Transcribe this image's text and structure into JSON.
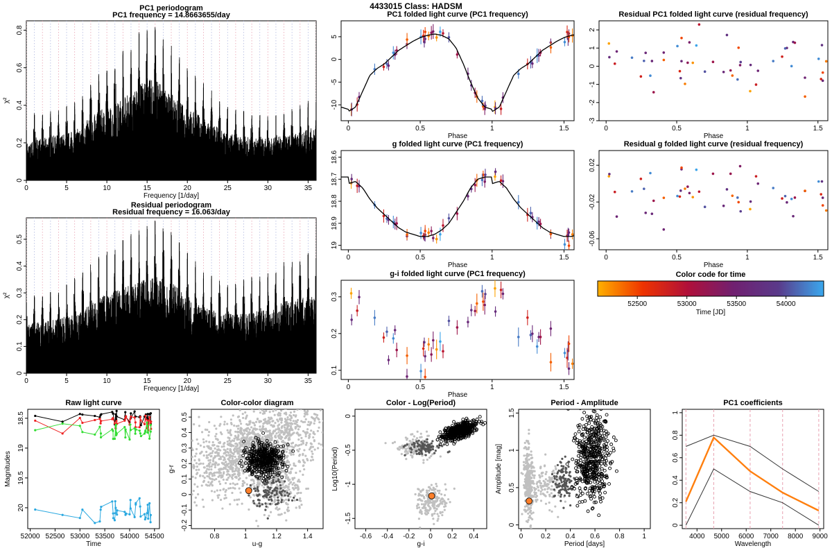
{
  "page": {
    "title": "4433015    Class: HADSM"
  },
  "colors": {
    "frame": "#000000",
    "grid_red": "#e8a0b0",
    "grid_blue": "#b0b8e0",
    "lightgray": "#c0c0c0",
    "darkgray": "#555555",
    "orange": "#ff7f2a",
    "green": "#33dd33",
    "red": "#ee2222",
    "cyan": "#2aa8e0",
    "pc1": "#ff7f0e"
  },
  "chart_data": [
    {
      "id": "pc1-periodogram",
      "type": "line",
      "title": "PC1 periodogram",
      "subtitle": "PC1 frequency = 14.8663655/day",
      "xlabel": "Frequency [1/day]",
      "ylabel": "χ²",
      "xlim": [
        0,
        36
      ],
      "ylim": [
        0,
        0.85
      ],
      "xticks": [
        0,
        5,
        10,
        15,
        20,
        25,
        30,
        35
      ],
      "yticks": [
        0.0,
        0.2,
        0.4,
        0.6,
        0.8
      ],
      "peaks_x": [
        0,
        1,
        2,
        3,
        4,
        5,
        6,
        7,
        8,
        9,
        10,
        11,
        12,
        13,
        14,
        15,
        16,
        17,
        18,
        19,
        20,
        21,
        22,
        23,
        24,
        25,
        26,
        27,
        28,
        29,
        30,
        31,
        32,
        33,
        34,
        35,
        36
      ],
      "peaks_y": [
        0.27,
        0.36,
        0.35,
        0.37,
        0.38,
        0.4,
        0.42,
        0.47,
        0.53,
        0.58,
        0.61,
        0.63,
        0.7,
        0.73,
        0.8,
        0.84,
        0.85,
        0.78,
        0.72,
        0.66,
        0.6,
        0.57,
        0.52,
        0.48,
        0.43,
        0.4,
        0.38,
        0.37,
        0.36,
        0.35,
        0.35,
        0.36,
        0.37,
        0.38,
        0.4,
        0.43,
        0.44
      ]
    },
    {
      "id": "residual-periodogram",
      "type": "line",
      "title": "Residual periodogram",
      "subtitle": "Residual frequency = 16.063/day",
      "xlabel": "Frequency [1/day]",
      "ylabel": "χ²",
      "xlim": [
        0,
        36
      ],
      "ylim": [
        0,
        0.58
      ],
      "xticks": [
        0,
        5,
        10,
        15,
        20,
        25,
        30,
        35
      ],
      "yticks": [
        0.0,
        0.1,
        0.2,
        0.3,
        0.4,
        0.5
      ],
      "peaks_x": [
        0,
        1,
        2,
        3,
        4,
        5,
        6,
        7,
        8,
        9,
        10,
        11,
        12,
        13,
        14,
        15,
        16,
        17,
        18,
        19,
        20,
        21,
        22,
        23,
        24,
        25,
        26,
        27,
        28,
        29,
        30,
        31,
        32,
        33,
        34,
        35,
        36
      ],
      "peaks_y": [
        0.28,
        0.3,
        0.3,
        0.31,
        0.32,
        0.34,
        0.36,
        0.38,
        0.41,
        0.44,
        0.46,
        0.48,
        0.5,
        0.52,
        0.54,
        0.56,
        0.57,
        0.55,
        0.53,
        0.49,
        0.45,
        0.42,
        0.39,
        0.37,
        0.36,
        0.35,
        0.34,
        0.35,
        0.36,
        0.37,
        0.38,
        0.4,
        0.42,
        0.43,
        0.44,
        0.45,
        0.45
      ]
    },
    {
      "id": "pc1-folded",
      "type": "scatter",
      "title": "PC1 folded light curve (PC1 frequency)",
      "xlabel": "Phase",
      "ylabel": "",
      "xlim": [
        -0.05,
        1.57
      ],
      "ylim": [
        -13.5,
        8.5
      ],
      "xticks": [
        0,
        0.5,
        1,
        1.5
      ],
      "yticks": [
        -10,
        -5,
        0,
        5
      ],
      "curve_x": [
        0,
        0.05,
        0.1,
        0.15,
        0.2,
        0.25,
        0.3,
        0.35,
        0.4,
        0.45,
        0.5,
        0.55,
        0.6,
        0.65,
        0.7,
        0.75,
        0.8,
        0.85,
        0.9,
        0.95,
        1.0,
        1.05,
        1.1,
        1.15,
        1.2,
        1.25,
        1.3,
        1.35,
        1.4,
        1.45,
        1.5,
        1.55
      ],
      "curve_y": [
        -11.5,
        -10.5,
        -7,
        -3.5,
        -2,
        -1,
        0.5,
        2,
        3,
        4,
        4.8,
        5.3,
        5.6,
        5.3,
        4.5,
        2.5,
        -1,
        -5,
        -8.5,
        -10.5,
        -11,
        -10.5,
        -7,
        -3.5,
        -2,
        -1,
        0.5,
        2,
        3,
        4,
        4.8,
        5.3
      ],
      "err": 3.0
    },
    {
      "id": "pc1-residual",
      "type": "scatter",
      "title": "Residual PC1 folded light curve (residual frequency)",
      "xlabel": "Phase",
      "ylabel": "",
      "xlim": [
        -0.05,
        1.57
      ],
      "ylim": [
        -3,
        2.5
      ],
      "xticks": [
        0,
        0.5,
        1,
        1.5
      ],
      "yticks": [
        -3,
        -2,
        -1,
        0,
        1,
        2
      ]
    },
    {
      "id": "g-folded",
      "type": "scatter",
      "title": "g folded light curve (PC1 frequency)",
      "xlabel": "Phase",
      "ylabel": "",
      "xlim": [
        -0.05,
        1.57
      ],
      "ylim": [
        19.02,
        18.57
      ],
      "xticks": [
        0,
        0.5,
        1,
        1.5
      ],
      "yticks": [
        18.6,
        18.7,
        18.8,
        18.9,
        19.0
      ],
      "curve_x": [
        0,
        0.05,
        0.1,
        0.15,
        0.2,
        0.25,
        0.3,
        0.35,
        0.4,
        0.45,
        0.5,
        0.55,
        0.6,
        0.65,
        0.7,
        0.75,
        0.8,
        0.85,
        0.9,
        0.95,
        1.0,
        1.05,
        1.1,
        1.15,
        1.2,
        1.25,
        1.3,
        1.35,
        1.4,
        1.45,
        1.5,
        1.55
      ],
      "curve_y": [
        18.72,
        18.71,
        18.74,
        18.79,
        18.83,
        18.86,
        18.89,
        18.92,
        18.94,
        18.95,
        18.96,
        18.96,
        18.95,
        18.93,
        18.9,
        18.85,
        18.8,
        18.74,
        18.7,
        18.69,
        18.69,
        18.7,
        18.74,
        18.79,
        18.83,
        18.86,
        18.89,
        18.92,
        18.94,
        18.95,
        18.96,
        18.96
      ],
      "err": 0.06
    },
    {
      "id": "g-residual",
      "type": "scatter",
      "title": "Residual g folded light curve (residual frequency)",
      "xlabel": "Phase",
      "ylabel": "",
      "xlim": [
        -0.05,
        1.57
      ],
      "ylim": [
        -0.072,
        0.036
      ],
      "xticks": [
        0,
        0.5,
        1,
        1.5
      ],
      "yticks": [
        -0.06,
        -0.02,
        0.02
      ]
    },
    {
      "id": "gi-folded",
      "type": "scatter",
      "title": "g-i folded light curve (PC1 frequency)",
      "xlabel": "Phase",
      "ylabel": "",
      "xlim": [
        -0.05,
        1.57
      ],
      "ylim": [
        0.075,
        0.345
      ],
      "xticks": [
        0,
        0.5,
        1,
        1.5
      ],
      "yticks": [
        0.1,
        0.2,
        0.3
      ],
      "err": 0.05
    },
    {
      "id": "color-code",
      "type": "heatmap",
      "title": "Color code for time",
      "xlabel": "Time [JD]",
      "xlim": [
        52100,
        54380
      ],
      "xticks": [
        52500,
        53000,
        53500,
        54000
      ],
      "stops": [
        "#ffb000",
        "#ee3300",
        "#b0103a",
        "#702070",
        "#5a3a8a",
        "#3aa8ee"
      ]
    },
    {
      "id": "raw-light-curve",
      "type": "line",
      "title": "Raw light curve",
      "xlabel": "Time",
      "ylabel": "Magnitudes",
      "xlim": [
        51950,
        54600
      ],
      "ylim": [
        20.35,
        18.35
      ],
      "xticks": [
        52000,
        52500,
        53000,
        53500,
        54000,
        54500
      ],
      "yticks": [
        18.5,
        19.0,
        19.5,
        20.0
      ],
      "series": [
        {
          "color": "#000000",
          "base": 18.48
        },
        {
          "color": "#ee2222",
          "base": 18.56
        },
        {
          "color": "#33dd33",
          "base": 18.72
        },
        {
          "color": "#2aa8e0",
          "base": 20.05
        }
      ],
      "times": [
        52100,
        52650,
        53000,
        53050,
        53300,
        53400,
        53650,
        53700,
        53720,
        53900,
        54000,
        54100,
        54200,
        54300,
        54350,
        54400
      ]
    },
    {
      "id": "color-color",
      "type": "scatter",
      "title": "Color-color diagram",
      "xlabel": "u-g",
      "ylabel": "g-r",
      "xlim": [
        0.65,
        1.5
      ],
      "ylim": [
        -0.22,
        0.55
      ],
      "xticks": [
        0.8,
        1.0,
        1.2,
        1.4
      ],
      "yticks": [
        -0.2,
        -0.1,
        0.0,
        0.1,
        0.2,
        0.3,
        0.4,
        0.5
      ],
      "marker": [
        1.02,
        0.025
      ]
    },
    {
      "id": "color-logperiod",
      "type": "scatter",
      "title": "Color - Log(Period)",
      "xlabel": "g-i",
      "ylabel": "Log10(Period)",
      "xlim": [
        -0.7,
        0.52
      ],
      "ylim": [
        -1.65,
        0.1
      ],
      "xticks": [
        -0.6,
        -0.4,
        -0.2,
        0.0,
        0.2,
        0.4
      ],
      "yticks": [
        -1.5,
        -1.0,
        -0.5,
        0.0
      ],
      "marker": [
        0.01,
        -1.17
      ]
    },
    {
      "id": "period-amplitude",
      "type": "scatter",
      "title": "Period - Amplitude",
      "xlabel": "Period [days]",
      "ylabel": "Amplitude [mag]",
      "xlim": [
        -0.02,
        1.05
      ],
      "ylim": [
        -0.05,
        1.55
      ],
      "xticks": [
        0.0,
        0.2,
        0.4,
        0.6,
        0.8,
        1.0
      ],
      "yticks": [
        0.0,
        0.5,
        1.0,
        1.5
      ],
      "marker": [
        0.065,
        0.32
      ]
    },
    {
      "id": "pc1-coefficients",
      "type": "line",
      "title": "PC1 coefficients",
      "xlabel": "Wavelength",
      "ylabel": "",
      "xlim": [
        3400,
        9150
      ],
      "ylim": [
        -0.03,
        1.03
      ],
      "xticks": [
        4000,
        5000,
        6000,
        7000,
        8000,
        9000
      ],
      "yticks": [
        0.0,
        0.2,
        0.4,
        0.6,
        0.8,
        1.0
      ],
      "x": [
        3550,
        4680,
        6160,
        7480,
        8950
      ],
      "series": [
        {
          "name": "",
          "color": "#ff7f0e",
          "values": [
            0.21,
            0.78,
            0.48,
            0.29,
            0.13
          ]
        },
        {
          "name": "",
          "color": "#333333",
          "values": [
            0.7,
            0.8,
            0.7,
            0.5,
            0.3
          ]
        },
        {
          "name": "",
          "color": "#333333",
          "values": [
            0.0,
            0.5,
            0.3,
            0.2,
            0.0
          ]
        }
      ]
    }
  ]
}
